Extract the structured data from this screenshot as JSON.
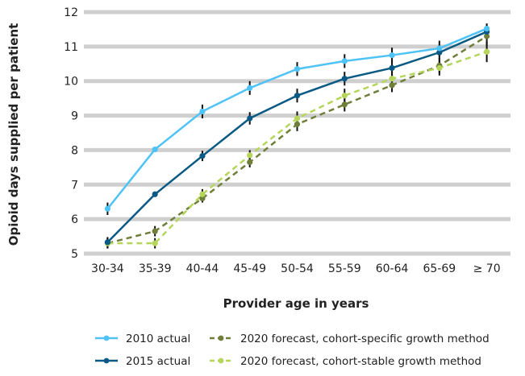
{
  "chart_data": {
    "type": "line",
    "xlabel": "Provider age in years",
    "ylabel": "Opioid days supplied per patient",
    "ylim": [
      5,
      12
    ],
    "yticks": [
      5,
      6,
      7,
      8,
      9,
      10,
      11,
      12
    ],
    "grid": "horizontal",
    "legend_position": "bottom",
    "categories": [
      "30-34",
      "35-39",
      "40-44",
      "45-49",
      "50-54",
      "55-59",
      "60-64",
      "65-69",
      "≥ 70"
    ],
    "series": [
      {
        "name": "2010 actual",
        "color": "#4fc3f7",
        "style": "solid",
        "values": [
          6.3,
          8.02,
          9.12,
          9.8,
          10.35,
          10.58,
          10.75,
          10.95,
          11.52
        ],
        "errors": [
          0.18,
          0.05,
          0.2,
          0.2,
          0.2,
          0.2,
          0.22,
          0.22,
          0.15
        ]
      },
      {
        "name": "2015 actual",
        "color": "#0a5a85",
        "style": "solid",
        "values": [
          5.33,
          6.72,
          7.83,
          8.92,
          9.58,
          10.07,
          10.38,
          10.83,
          11.43
        ],
        "errors": [
          0.15,
          0.05,
          0.15,
          0.18,
          0.2,
          0.2,
          0.22,
          0.22,
          0.22
        ]
      },
      {
        "name": "2020 forecast, cohort-specific growth method",
        "color": "#6f7f3a",
        "style": "dashed",
        "values": [
          5.3,
          5.65,
          6.6,
          7.65,
          8.75,
          9.32,
          9.88,
          10.45,
          11.3
        ],
        "errors": [
          0.15,
          0.15,
          0.12,
          0.15,
          0.2,
          0.2,
          0.2,
          0.22,
          0.3
        ]
      },
      {
        "name": "2020 forecast, cohort-stable growth method",
        "color": "#b5d65a",
        "style": "dashed",
        "values": [
          5.3,
          5.3,
          6.72,
          7.85,
          8.92,
          9.58,
          10.07,
          10.38,
          10.85
        ],
        "errors": [
          0.15,
          0.15,
          0.15,
          0.15,
          0.2,
          0.2,
          0.2,
          0.22,
          0.3
        ]
      }
    ]
  }
}
